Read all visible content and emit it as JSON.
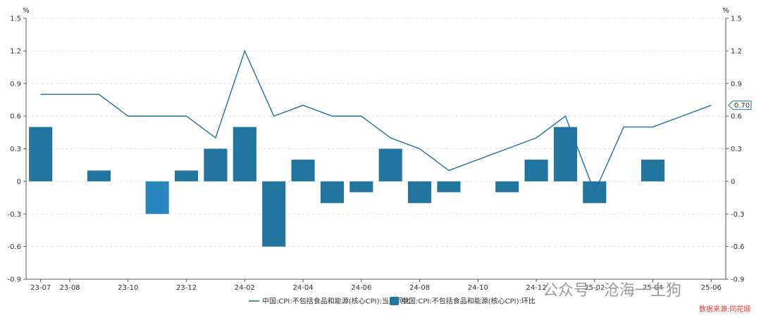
{
  "chart_data": {
    "type": "bar+line",
    "left_unit": "%",
    "right_unit": "%",
    "ylim": [
      -0.9,
      1.5
    ],
    "yticks": [
      "1.5",
      "1.2",
      "0.9",
      "0.6",
      "0.3",
      "0",
      "-0.3",
      "-0.6",
      "-0.9"
    ],
    "categories": [
      "23-07",
      "23-08",
      "23-09",
      "23-10",
      "23-11",
      "23-12",
      "24-01",
      "24-02",
      "24-03",
      "24-04",
      "24-05",
      "24-06",
      "24-07",
      "24-08",
      "24-09",
      "24-10",
      "24-11",
      "24-12",
      "25-01",
      "25-02",
      "25-03",
      "25-04",
      "25-05",
      "25-06"
    ],
    "x_tick_labels": [
      "23-07",
      "23-08",
      "23-10",
      "23-12",
      "24-02",
      "24-04",
      "24-06",
      "24-08",
      "24-10",
      "24-12",
      "25-02",
      "25-04",
      "25-06"
    ],
    "series": [
      {
        "name": "中国:CPI:不包括食品和能源(核心CPI):当月同比",
        "kind": "line",
        "color": "#1f6fa0",
        "values": [
          0.8,
          0.8,
          0.8,
          0.6,
          0.6,
          0.6,
          0.4,
          1.2,
          0.6,
          0.7,
          0.6,
          0.6,
          0.4,
          0.3,
          0.1,
          0.2,
          0.3,
          0.4,
          0.6,
          -0.1,
          0.5,
          0.5,
          0.6,
          0.7
        ]
      },
      {
        "name": "中国:CPI:不包括食品和能源(核心CPI):环比",
        "kind": "bar",
        "color": "#21759e",
        "values": [
          0.5,
          0.0,
          0.1,
          0.0,
          -0.3,
          0.1,
          0.3,
          0.5,
          -0.6,
          0.2,
          -0.2,
          -0.1,
          0.3,
          -0.2,
          -0.1,
          0.0,
          -0.1,
          0.2,
          0.5,
          -0.2,
          0.0,
          0.2,
          0.0,
          0.0
        ]
      }
    ],
    "last_value_label": "0.70",
    "watermark": "公众号 · 沧海一土狗",
    "source_text": "数据来源:同花顺"
  }
}
